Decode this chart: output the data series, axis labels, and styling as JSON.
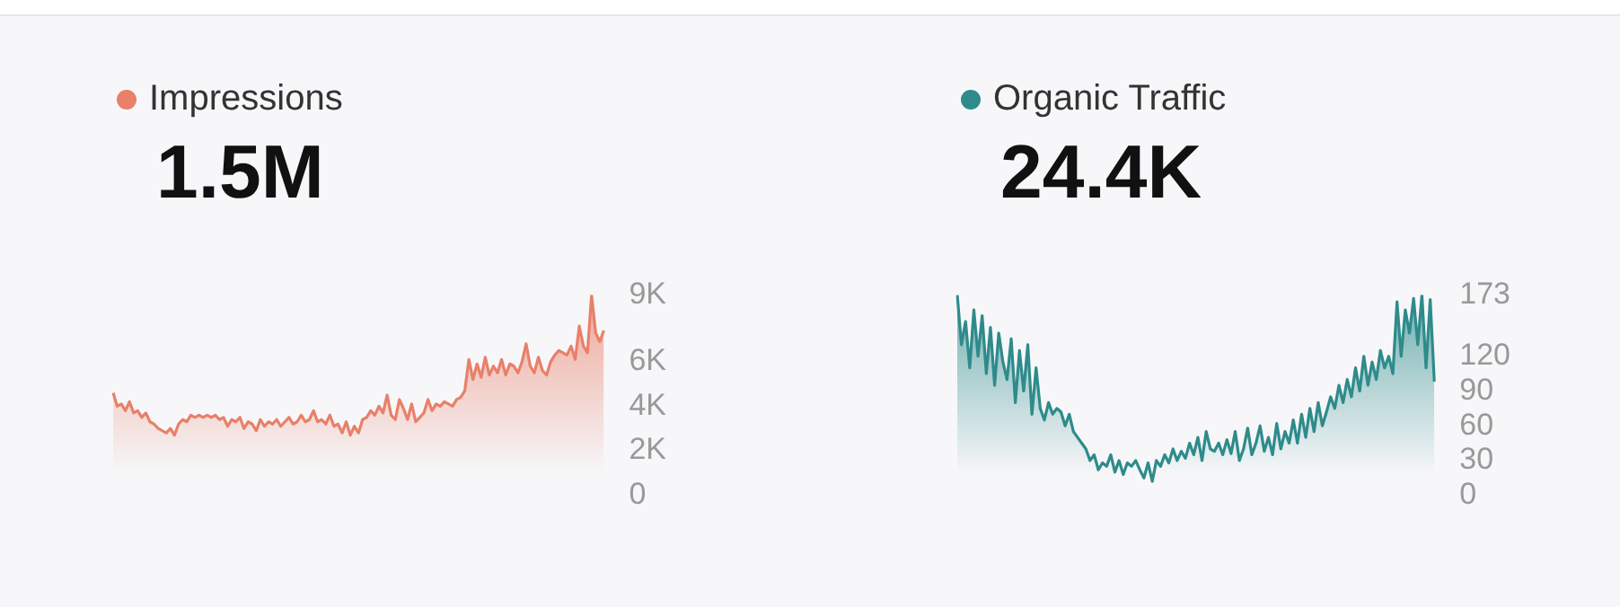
{
  "chart_data": [
    {
      "type": "area",
      "title": "1.5M",
      "legend": "top left",
      "grid": false,
      "tick_labels": "y",
      "marker": "none",
      "categories": [
        null,
        null,
        null,
        null,
        null,
        null,
        null,
        null,
        null,
        null,
        null,
        null,
        null,
        null,
        null,
        null,
        null,
        null,
        null,
        null,
        null,
        null,
        null,
        null,
        null,
        null,
        null,
        null,
        null,
        null,
        null,
        null,
        null,
        null,
        null,
        null,
        null,
        null,
        null,
        null,
        null,
        null,
        null,
        null,
        null,
        null,
        null,
        null,
        null,
        null,
        null,
        null,
        null,
        null,
        null,
        null,
        null,
        null,
        null,
        null,
        null,
        null,
        null,
        null,
        null,
        null,
        null,
        null,
        null,
        null,
        null,
        null,
        null,
        null,
        null,
        null,
        null,
        null,
        null,
        null,
        null,
        null,
        null,
        null,
        null,
        null,
        null,
        null,
        null,
        null,
        null,
        null,
        null,
        null,
        null,
        null,
        null,
        null,
        null,
        null,
        null,
        null,
        null,
        null,
        null,
        null,
        null,
        null,
        null,
        null,
        null,
        null,
        null,
        null,
        null,
        null,
        null,
        null,
        null,
        null,
        null
      ],
      "ylim": [
        0,
        9000
      ],
      "yticks": [
        {
          "value": 0,
          "label": "0"
        },
        {
          "value": 2000,
          "label": "2K"
        },
        {
          "value": 4000,
          "label": "4K"
        },
        {
          "value": 6000,
          "label": "6K"
        },
        {
          "value": 9000,
          "label": "9K"
        }
      ],
      "series": [
        {
          "name": "Impressions",
          "color": "#e8806a",
          "values": [
            4600,
            4000,
            4100,
            3800,
            4200,
            3700,
            3800,
            3500,
            3700,
            3300,
            3200,
            3000,
            2900,
            2800,
            3000,
            2700,
            3200,
            3400,
            3300,
            3600,
            3500,
            3600,
            3500,
            3600,
            3500,
            3600,
            3400,
            3500,
            3100,
            3400,
            3300,
            3500,
            3000,
            3300,
            3200,
            2900,
            3400,
            3100,
            3300,
            3200,
            3400,
            3100,
            3300,
            3500,
            3200,
            3300,
            3600,
            3300,
            3400,
            3800,
            3300,
            3400,
            3200,
            3600,
            3100,
            3200,
            2800,
            3300,
            2700,
            3100,
            2800,
            3400,
            3500,
            3800,
            3600,
            4000,
            3700,
            4500,
            3600,
            3400,
            4300,
            3900,
            3400,
            4100,
            3300,
            3500,
            3700,
            4300,
            3800,
            4100,
            4000,
            4200,
            4100,
            4000,
            4300,
            4400,
            4700,
            6100,
            5200,
            5900,
            5300,
            6200,
            5400,
            5800,
            5500,
            6100,
            5400,
            5900,
            5800,
            5500,
            6000,
            6800,
            5800,
            5500,
            6200,
            5600,
            5400,
            6000,
            6300,
            6500,
            6400,
            6300,
            6700,
            6100,
            7600,
            6700,
            6400,
            9000,
            7300,
            6900,
            7400
          ]
        }
      ]
    },
    {
      "type": "area",
      "title": "24.4K",
      "legend": "top left",
      "grid": false,
      "tick_labels": "y",
      "marker": "none",
      "categories": [
        null,
        null,
        null,
        null,
        null,
        null,
        null,
        null,
        null,
        null,
        null,
        null,
        null,
        null,
        null,
        null,
        null,
        null,
        null,
        null,
        null,
        null,
        null,
        null,
        null,
        null,
        null,
        null,
        null,
        null,
        null,
        null,
        null,
        null,
        null,
        null,
        null,
        null,
        null,
        null,
        null,
        null,
        null,
        null,
        null,
        null,
        null,
        null,
        null,
        null,
        null,
        null,
        null,
        null,
        null,
        null,
        null,
        null,
        null,
        null,
        null,
        null,
        null,
        null,
        null,
        null,
        null,
        null,
        null,
        null,
        null,
        null,
        null,
        null,
        null,
        null,
        null,
        null,
        null,
        null,
        null,
        null,
        null,
        null,
        null,
        null,
        null,
        null,
        null,
        null,
        null,
        null,
        null,
        null,
        null,
        null,
        null,
        null,
        null,
        null,
        null,
        null,
        null,
        null,
        null,
        null,
        null,
        null,
        null,
        null,
        null,
        null,
        null,
        null,
        null,
        null
      ],
      "ylim": [
        0,
        173
      ],
      "yticks": [
        0,
        30,
        60,
        90,
        120,
        173
      ],
      "series": [
        {
          "name": "Organic Traffic",
          "color": "#2e8b8b",
          "values": [
            173,
            130,
            150,
            110,
            160,
            120,
            155,
            105,
            145,
            95,
            140,
            115,
            100,
            135,
            80,
            125,
            90,
            130,
            70,
            110,
            75,
            65,
            80,
            70,
            75,
            72,
            60,
            70,
            55,
            50,
            45,
            40,
            30,
            35,
            22,
            28,
            25,
            35,
            20,
            30,
            18,
            28,
            25,
            30,
            22,
            15,
            28,
            12,
            30,
            25,
            35,
            28,
            40,
            30,
            38,
            32,
            45,
            35,
            50,
            30,
            55,
            40,
            38,
            45,
            35,
            48,
            36,
            55,
            30,
            40,
            58,
            35,
            45,
            60,
            38,
            50,
            35,
            62,
            40,
            55,
            45,
            65,
            45,
            70,
            50,
            75,
            55,
            80,
            60,
            72,
            85,
            75,
            95,
            80,
            100,
            85,
            110,
            90,
            120,
            95,
            115,
            100,
            125,
            110,
            120,
            105,
            167,
            120,
            160,
            140,
            170,
            130,
            173,
            110,
            169,
            98
          ]
        }
      ]
    }
  ]
}
